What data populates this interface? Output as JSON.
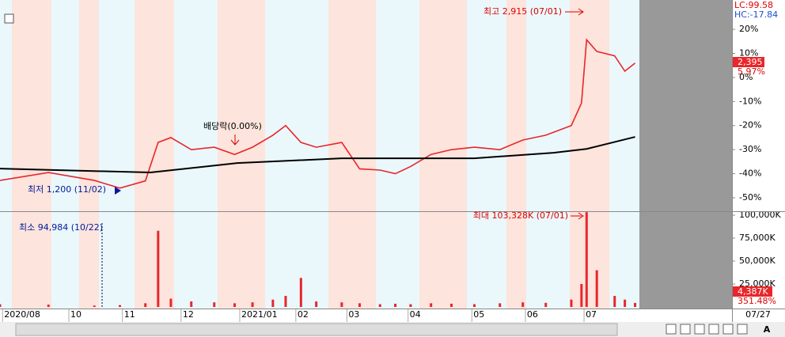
{
  "chart_data": [
    {
      "type": "line",
      "legend_top": [
        "LC:99.58",
        "HC:-17.84"
      ],
      "annotations": {
        "high": "최고 2,915 (07/01)",
        "low": "최저 1,200 (11/02)",
        "ex_dividend": "배당락(0.00%)"
      },
      "last_price_label": "2,395",
      "last_change_label": "5.97%",
      "xlim": [
        0,
        287
      ],
      "xticks": [
        {
          "value": 1,
          "label": "2020/08"
        },
        {
          "value": 27,
          "label": "10"
        },
        {
          "value": 48,
          "label": "11"
        },
        {
          "value": 71,
          "label": "12"
        },
        {
          "value": 94,
          "label": "2021/01"
        },
        {
          "value": 116,
          "label": "02"
        },
        {
          "value": 136,
          "label": "03"
        },
        {
          "value": 160,
          "label": "04"
        },
        {
          "value": 185,
          "label": "05"
        },
        {
          "value": 206,
          "label": "06"
        },
        {
          "value": 229,
          "label": "07"
        }
      ],
      "current_date": "07/27",
      "ylim": [
        -55.6,
        32.2
      ],
      "yticks": [
        {
          "value": 20,
          "label": "20%"
        },
        {
          "value": 10,
          "label": "10%"
        },
        {
          "value": 0,
          "label": "0%"
        },
        {
          "value": -10,
          "label": "-10%"
        },
        {
          "value": -20,
          "label": "-20%"
        },
        {
          "value": -30,
          "label": "-30%"
        },
        {
          "value": -40,
          "label": "-40%"
        },
        {
          "value": -50,
          "label": "-50%"
        }
      ],
      "series": [
        {
          "color": "#e8262b",
          "x": [
            0,
            19,
            37,
            47,
            57,
            62,
            67,
            75,
            84,
            92,
            99,
            107,
            112,
            118,
            124,
            134,
            141,
            149,
            155,
            161,
            169,
            177,
            186,
            196,
            205,
            214,
            224,
            228,
            230,
            234,
            241,
            245,
            249
          ],
          "values": [
            -42.8,
            -39.5,
            -42.8,
            -46,
            -43,
            -27,
            -25,
            -30,
            -29,
            -32,
            -29,
            -24,
            -20,
            -27,
            -29,
            -27,
            -38,
            -38.5,
            -40,
            -37,
            -32,
            -30,
            -29,
            -30,
            -26,
            -24,
            -20,
            -10.6,
            15.7,
            10.8,
            9,
            2.6,
            5.97
          ]
        },
        {
          "color": "#000000",
          "x": [
            0,
            59,
            93,
            134,
            186,
            217,
            230,
            249
          ],
          "values": [
            -37.9,
            -39.5,
            -35.6,
            -33.6,
            -33.6,
            -31.3,
            -29.7,
            -24.7
          ]
        }
      ]
    },
    {
      "type": "bar",
      "annotations": {
        "max": "최대 103,328K (07/01)",
        "min": "최소 94,984 (10/22)"
      },
      "last_value_label": "4,387K",
      "last_ratio_label": "351.48%",
      "color": "#e8262b",
      "x": [
        0,
        19,
        37,
        47,
        57,
        62,
        67,
        75,
        84,
        92,
        99,
        107,
        112,
        118,
        124,
        134,
        141,
        149,
        155,
        161,
        169,
        177,
        186,
        196,
        205,
        214,
        224,
        228,
        230,
        234,
        241,
        245,
        249
      ],
      "values": [
        3000,
        2500,
        1500,
        2000,
        4000,
        83000,
        9000,
        6000,
        5000,
        4000,
        5000,
        8000,
        12000,
        31600,
        6000,
        5000,
        4000,
        3000,
        3500,
        3000,
        4000,
        3500,
        3000,
        4000,
        5000,
        4500,
        8000,
        25000,
        103328,
        40000,
        12000,
        8000,
        4387
      ],
      "ylim": [
        0,
        103450
      ],
      "yticks": [
        {
          "value": 100000,
          "label": "100,000K"
        },
        {
          "value": 75000,
          "label": "75,000K"
        },
        {
          "value": 50000,
          "label": "50,000K"
        },
        {
          "value": 25000,
          "label": "25,000K"
        }
      ]
    }
  ],
  "toolbar": {
    "font_button": "A"
  }
}
